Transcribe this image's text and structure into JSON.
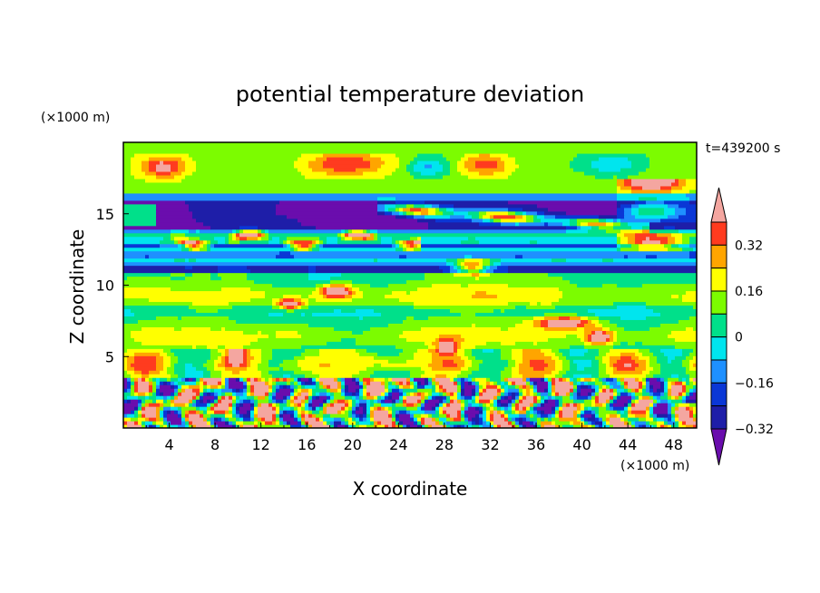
{
  "chart_data": {
    "type": "heatmap",
    "title": "potential temperature deviation",
    "xlabel": "X coordinate",
    "ylabel": "Z coordinate",
    "x_unit": "(×1000 m)",
    "y_unit": "(×1000 m)",
    "time_label": "t=439200 s",
    "xlim": [
      0,
      50
    ],
    "ylim": [
      0,
      20
    ],
    "x_ticks": [
      4,
      8,
      12,
      16,
      20,
      24,
      28,
      32,
      36,
      40,
      44,
      48
    ],
    "y_ticks": [
      5,
      10,
      15
    ],
    "colorbar": {
      "levels": [
        -0.4,
        -0.32,
        -0.24,
        -0.16,
        -0.08,
        0,
        0.08,
        0.16,
        0.24,
        0.32,
        0.4
      ],
      "colors": [
        "#6a0dad",
        "#1e1ea8",
        "#0a37d6",
        "#1e90ff",
        "#00e5ee",
        "#00e08a",
        "#7cfc00",
        "#ffff00",
        "#ffa500",
        "#ff3b1f",
        "#f4a6a0"
      ],
      "tick_values": [
        0.32,
        0.16,
        0,
        -0.16,
        -0.32
      ],
      "tick_labels": [
        "0.32",
        "0.16",
        "0",
        "−0.16",
        "−0.32"
      ]
    },
    "layers": [
      {
        "z": [
          0,
          3.5
        ],
        "description_level": "mixed",
        "value": 0.0
      },
      {
        "z": [
          3.5,
          5.5
        ],
        "value": 0.04
      },
      {
        "z": [
          5.5,
          11
        ],
        "value": 0.02
      },
      {
        "z": [
          11,
          14
        ],
        "value": -0.2
      },
      {
        "z": [
          14,
          16.5
        ],
        "value": -0.4
      },
      {
        "z": [
          16.5,
          20
        ],
        "value": 0.06
      }
    ]
  }
}
